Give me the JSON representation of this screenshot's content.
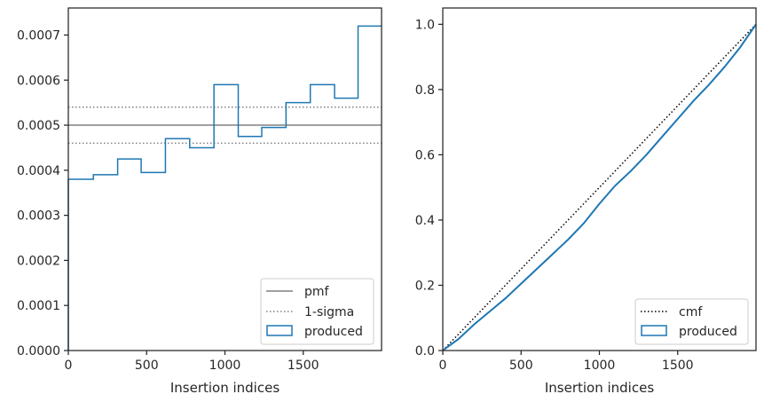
{
  "chart_data": [
    {
      "type": "line",
      "subtype": "step-histogram",
      "xlabel": "Insertion indices",
      "ylabel": "",
      "xlim": [
        0,
        2000
      ],
      "ylim": [
        0,
        0.00076
      ],
      "xticks": [
        0,
        500,
        1000,
        1500
      ],
      "xtick_labels": [
        "0",
        "500",
        "1000",
        "1500"
      ],
      "yticks": [
        0,
        0.0001,
        0.0002,
        0.0003,
        0.0004,
        0.0005,
        0.0006,
        0.0007
      ],
      "ytick_labels": [
        "0.0000",
        "0.0001",
        "0.0002",
        "0.0003",
        "0.0004",
        "0.0005",
        "0.0006",
        "0.0007"
      ],
      "grid": false,
      "legend_position": "lower-right",
      "legend": [
        "pmf",
        "1-sigma",
        "produced"
      ],
      "pmf": {
        "name": "pmf",
        "value": 0.0005,
        "color": "#808080",
        "style": "solid"
      },
      "sigma": {
        "name": "1-sigma",
        "values": [
          0.00054,
          0.00046
        ],
        "color": "#808080",
        "style": "dotted"
      },
      "produced": {
        "name": "produced",
        "color": "#1f77b4",
        "bin_edges": [
          0,
          160,
          315,
          465,
          620,
          775,
          930,
          1085,
          1235,
          1390,
          1545,
          1700,
          1850,
          2000
        ],
        "values": [
          0.00038,
          0.00039,
          0.000425,
          0.000395,
          0.00047,
          0.00045,
          0.00059,
          0.000475,
          0.000495,
          0.00055,
          0.00059,
          0.00056,
          0.00072
        ]
      }
    },
    {
      "type": "line",
      "xlabel": "Insertion indices",
      "ylabel": "",
      "xlim": [
        0,
        2000
      ],
      "ylim": [
        0,
        1.05
      ],
      "xticks": [
        0,
        500,
        1000,
        1500
      ],
      "xtick_labels": [
        "0",
        "500",
        "1000",
        "1500"
      ],
      "yticks": [
        0,
        0.2,
        0.4,
        0.6,
        0.8,
        1.0
      ],
      "ytick_labels": [
        "0.0",
        "0.2",
        "0.4",
        "0.6",
        "0.8",
        "1.0"
      ],
      "grid": false,
      "legend_position": "lower-right",
      "legend": [
        "cmf",
        "produced"
      ],
      "cmf": {
        "name": "cmf",
        "x": [
          0,
          2000
        ],
        "y": [
          0,
          1.0
        ],
        "color": "#000000",
        "style": "dotted"
      },
      "produced": {
        "name": "produced",
        "color": "#1f77b4",
        "x": [
          0,
          100,
          200,
          300,
          400,
          500,
          600,
          700,
          800,
          900,
          1000,
          1100,
          1200,
          1300,
          1400,
          1500,
          1600,
          1700,
          1800,
          1900,
          2000
        ],
        "y": [
          0,
          0.035,
          0.08,
          0.12,
          0.16,
          0.205,
          0.25,
          0.295,
          0.34,
          0.39,
          0.45,
          0.505,
          0.55,
          0.6,
          0.655,
          0.71,
          0.765,
          0.815,
          0.87,
          0.93,
          1.0
        ]
      }
    }
  ]
}
